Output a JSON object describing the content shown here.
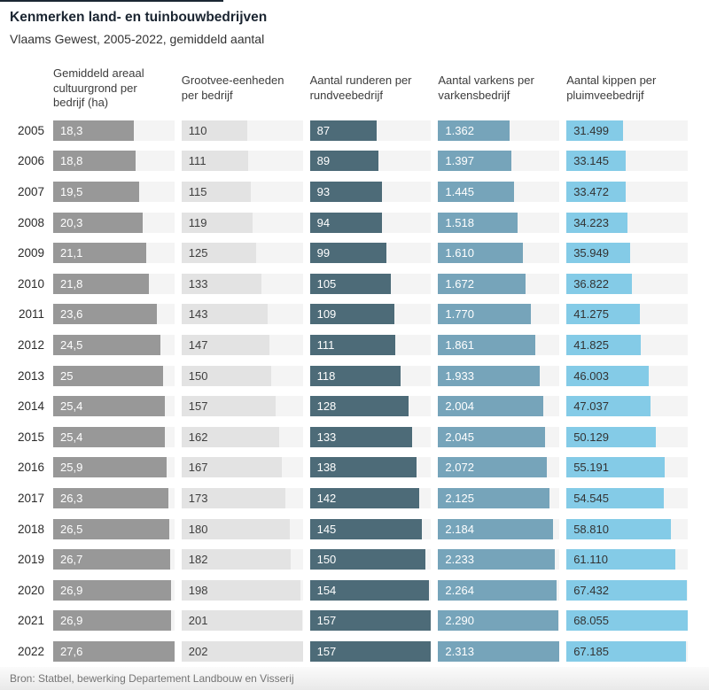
{
  "title": "Kenmerken land- en tuinbouwbedrijven",
  "subtitle": "Vlaams Gewest, 2005-2022, gemiddeld aantal",
  "source": "Bron: Statbel, bewerking Departement Landbouw en Visserij",
  "colors": {
    "top_rule": "#1b2733",
    "track": "#f4f4f4",
    "footer_text": "#757575"
  },
  "chart_data": {
    "type": "bar",
    "orientation": "horizontal",
    "title": "Kenmerken land- en tuinbouwbedrijven",
    "subtitle": "Vlaams Gewest, 2005-2022, gemiddeld aantal",
    "categories": [
      2005,
      2006,
      2007,
      2008,
      2009,
      2010,
      2011,
      2012,
      2013,
      2014,
      2015,
      2016,
      2017,
      2018,
      2019,
      2020,
      2021,
      2022
    ],
    "layout": "small-multiples, one mini bar chart per series, bars scaled to each series max",
    "series": [
      {
        "id": "areaal",
        "name": "Gemiddeld areaal cultuurgrond per bedrijf (ha)",
        "values": [
          18.3,
          18.8,
          19.5,
          20.3,
          21.1,
          21.8,
          23.6,
          24.5,
          25,
          25.4,
          25.4,
          25.9,
          26.3,
          26.5,
          26.7,
          26.9,
          26.9,
          27.6
        ],
        "labels": [
          "18,3",
          "18,8",
          "19,5",
          "20,3",
          "21,1",
          "21,8",
          "23,6",
          "24,5",
          "25",
          "25,4",
          "25,4",
          "25,9",
          "26,3",
          "26,5",
          "26,7",
          "26,9",
          "26,9",
          "27,6"
        ],
        "max": 27.6,
        "bar_color": "#989898",
        "label_color": "#ffffff"
      },
      {
        "id": "grootvee",
        "name": "Grootvee-eenheden per bedrijf",
        "values": [
          110,
          111,
          115,
          119,
          125,
          133,
          143,
          147,
          150,
          157,
          162,
          167,
          173,
          180,
          182,
          198,
          201,
          202
        ],
        "labels": [
          "110",
          "111",
          "115",
          "119",
          "125",
          "133",
          "143",
          "147",
          "150",
          "157",
          "162",
          "167",
          "173",
          "180",
          "182",
          "198",
          "201",
          "202"
        ],
        "max": 202,
        "bar_color": "#e3e3e3",
        "label_color": "#3f3f3f"
      },
      {
        "id": "runderen",
        "name": "Aantal runderen per rundveebedrijf",
        "values": [
          87,
          89,
          93,
          94,
          99,
          105,
          109,
          111,
          118,
          128,
          133,
          138,
          142,
          145,
          150,
          154,
          157,
          157
        ],
        "labels": [
          "87",
          "89",
          "93",
          "94",
          "99",
          "105",
          "109",
          "111",
          "118",
          "128",
          "133",
          "138",
          "142",
          "145",
          "150",
          "154",
          "157",
          "157"
        ],
        "max": 157,
        "bar_color": "#4d6b78",
        "label_color": "#ffffff"
      },
      {
        "id": "varkens",
        "name": "Aantal varkens per varkensbedrijf",
        "values": [
          1362,
          1397,
          1445,
          1518,
          1610,
          1672,
          1770,
          1861,
          1933,
          2004,
          2045,
          2072,
          2125,
          2184,
          2233,
          2264,
          2290,
          2313
        ],
        "labels": [
          "1.362",
          "1.397",
          "1.445",
          "1.518",
          "1.610",
          "1.672",
          "1.770",
          "1.861",
          "1.933",
          "2.004",
          "2.045",
          "2.072",
          "2.125",
          "2.184",
          "2.233",
          "2.264",
          "2.290",
          "2.313"
        ],
        "max": 2313,
        "bar_color": "#76a4ba",
        "label_color": "#ffffff"
      },
      {
        "id": "kippen",
        "name": "Aantal kippen per pluimveebedrijf",
        "values": [
          31499,
          33145,
          33472,
          34223,
          35949,
          36822,
          41275,
          41825,
          46003,
          47037,
          50129,
          55191,
          54545,
          58810,
          61110,
          67432,
          68055,
          67185
        ],
        "labels": [
          "31.499",
          "33.145",
          "33.472",
          "34.223",
          "35.949",
          "36.822",
          "41.275",
          "41.825",
          "46.003",
          "47.037",
          "50.129",
          "55.191",
          "54.545",
          "58.810",
          "61.110",
          "67.432",
          "68.055",
          "67.185"
        ],
        "max": 68055,
        "bar_color": "#84cbe7",
        "label_color": "#333333"
      }
    ]
  }
}
